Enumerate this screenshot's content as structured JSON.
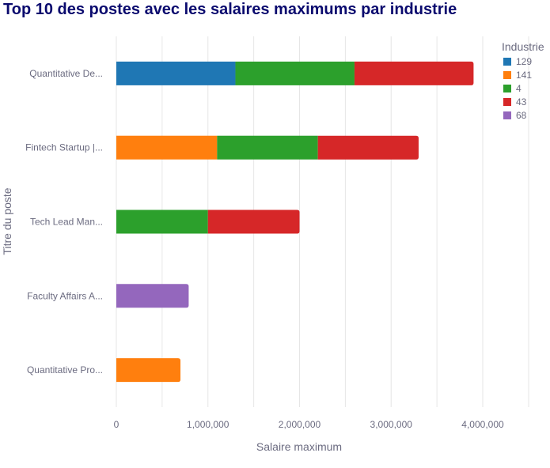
{
  "chart_data": {
    "type": "bar",
    "orientation": "horizontal",
    "stacked": true,
    "title": "Top 10 des postes avec les salaires maximums par industrie",
    "xlabel": "Salaire maximum",
    "ylabel": "Titre du poste",
    "categories": [
      "Quantitative De...",
      "Fintech Startup |...",
      "Tech Lead Man...",
      "Faculty Affairs A...",
      "Quantitative Pro..."
    ],
    "xlim": [
      0,
      4000000
    ],
    "xticks": [
      0,
      1000000,
      2000000,
      3000000,
      4000000
    ],
    "xtick_labels": [
      "0",
      "1,000,000",
      "2,000,000",
      "3,000,000",
      "4,000,000"
    ],
    "grid": true,
    "legend": {
      "title": "Industrie",
      "position": "top-right"
    },
    "series": [
      {
        "name": "129",
        "color": "#1f77b4",
        "values": [
          1300000,
          0,
          0,
          0,
          0
        ]
      },
      {
        "name": "141",
        "color": "#ff7f0e",
        "values": [
          0,
          1100000,
          0,
          0,
          700000
        ]
      },
      {
        "name": "4",
        "color": "#2ca02c",
        "values": [
          1300000,
          1100000,
          1000000,
          0,
          0
        ]
      },
      {
        "name": "43",
        "color": "#d62728",
        "values": [
          1300000,
          1100000,
          1000000,
          0,
          0
        ]
      },
      {
        "name": "68",
        "color": "#9467bd",
        "values": [
          0,
          0,
          0,
          790000,
          0
        ]
      }
    ]
  }
}
